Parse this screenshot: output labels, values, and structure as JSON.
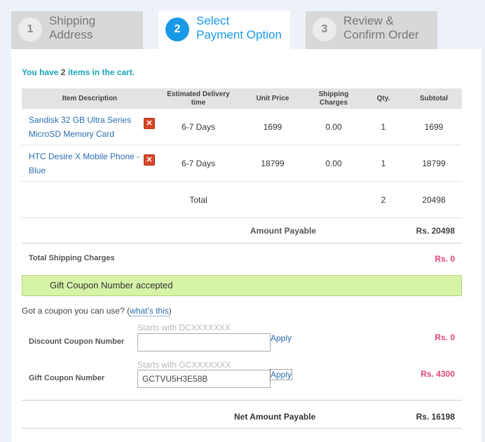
{
  "steps": [
    {
      "num": "1",
      "label": "Shipping\nAddress"
    },
    {
      "num": "2",
      "label": "Select\nPayment Option"
    },
    {
      "num": "3",
      "label": "Review &\nConfirm Order"
    }
  ],
  "cart": {
    "msg_prefix": "You have ",
    "count": "2",
    "msg_suffix": " items in the cart."
  },
  "table": {
    "headers": [
      "Item Description",
      "Estimated Delivery time",
      "Unit Price",
      "Shipping Charges",
      "Qty.",
      "Subtotal"
    ],
    "rows": [
      {
        "name": "Sandisk 32 GB Ultra Series MicroSD Memory Card",
        "delivery": "6-7 Days",
        "price": "1699",
        "shipping": "0.00",
        "qty": "1",
        "subtotal": "1699"
      },
      {
        "name": "HTC Desire X Mobile Phone - Blue",
        "delivery": "6-7 Days",
        "price": "18799",
        "shipping": "0.00",
        "qty": "1",
        "subtotal": "18799"
      }
    ],
    "total": {
      "label": "Total",
      "qty": "2",
      "subtotal": "20498"
    }
  },
  "summary": {
    "amount_payable_label": "Amount Payable",
    "amount_payable": "Rs. 20498",
    "shipping_label": "Total Shipping Charges",
    "shipping_value": "Rs. 0"
  },
  "notice": "Gift Coupon Number accepted",
  "coupon": {
    "question": "Got a coupon you can use? (",
    "whats_this": "what's this",
    "question_end": ")",
    "discount_label": "Discount Coupon Number",
    "discount_hint": "Starts with DCXXXXXXX",
    "discount_value": "",
    "discount_amount": "Rs. 0",
    "gift_label": "Gift Coupon Number",
    "gift_hint": "Starts with GCXXXXXXX",
    "gift_value": "GCTVU5H3E58B",
    "gift_amount": "Rs. 4300",
    "apply": "Apply"
  },
  "net": {
    "label": "Net Amount Payable",
    "value": "Rs. 16198"
  },
  "colors": {
    "accent": "#1a9ae6",
    "pink": "#e0457b",
    "notice_bg": "#d7f3a8"
  }
}
